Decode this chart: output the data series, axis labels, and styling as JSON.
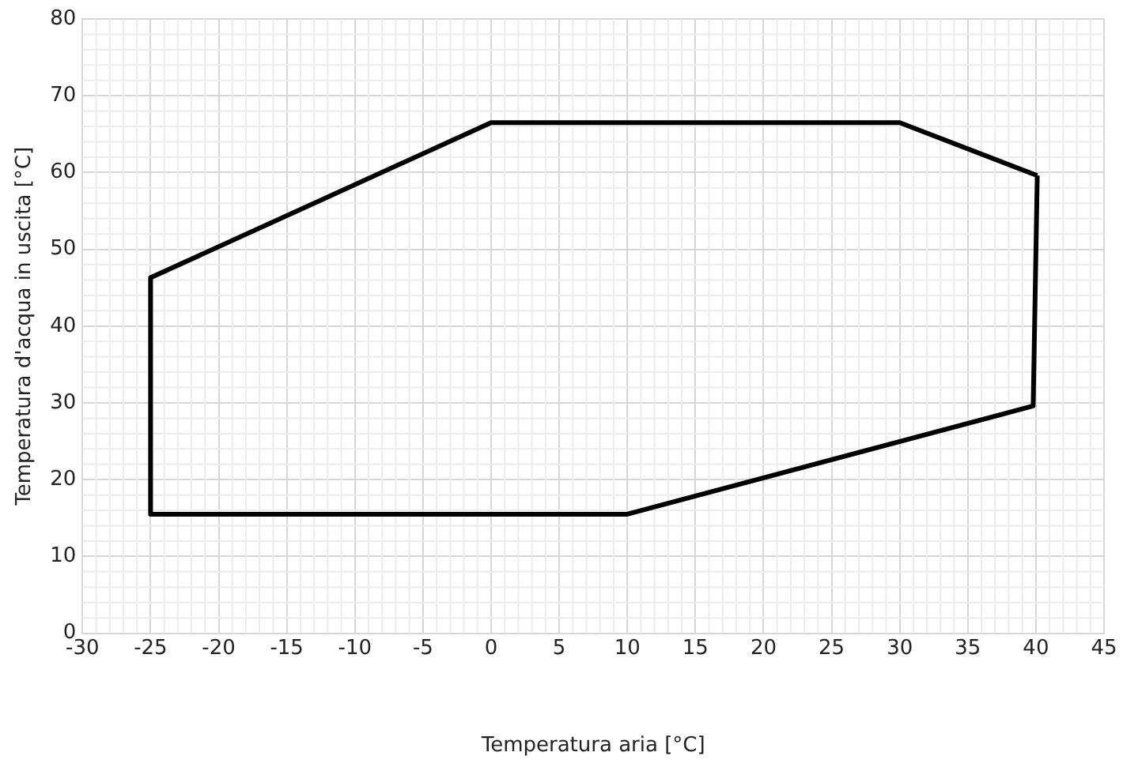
{
  "chart_data": {
    "type": "line",
    "xlabel": "Temperatura aria [°C]",
    "ylabel": "Temperatura d'acqua in uscita [°C]",
    "series": [
      {
        "color": "#000000",
        "x": [
          -25,
          -25,
          10,
          39.8,
          40.1
        ],
        "values": [
          46.3,
          15.5,
          15.5,
          29.6,
          59.6
        ]
      },
      {
        "color": "#000000",
        "x": [
          -25,
          0,
          30,
          40.1
        ],
        "values": [
          46.3,
          66.5,
          66.5,
          59.6
        ]
      }
    ],
    "xlim": [
      -30,
      45
    ],
    "xticks": [
      -30,
      -25,
      -20,
      -15,
      -10,
      -5,
      0,
      5,
      10,
      15,
      20,
      25,
      30,
      35,
      40,
      45
    ],
    "ylim": [
      0,
      80
    ],
    "yticks": [
      0,
      10,
      20,
      30,
      40,
      50,
      60,
      70,
      80
    ],
    "grid": true,
    "legend": false,
    "marker": "none",
    "line_style": "solid"
  }
}
